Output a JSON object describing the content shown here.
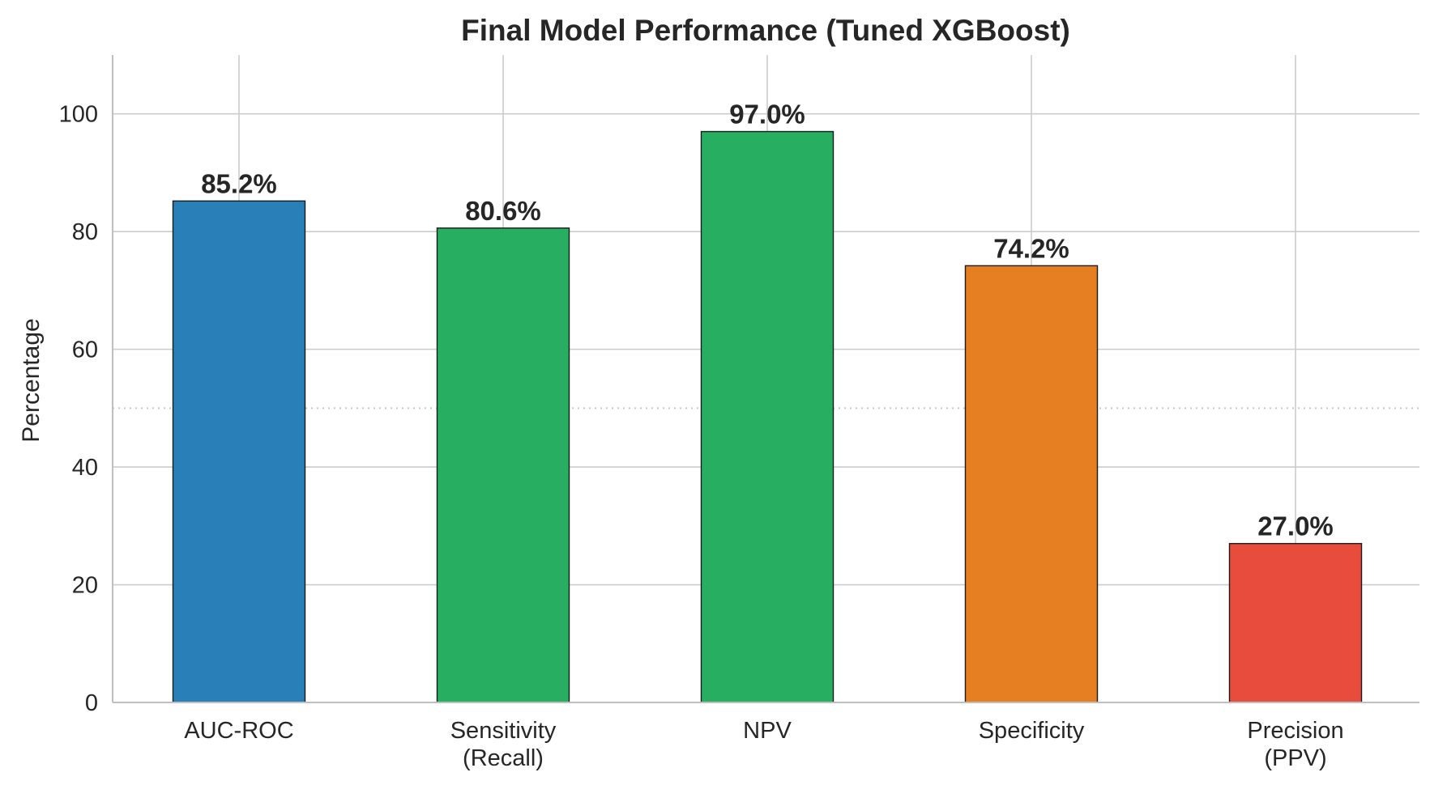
{
  "chart_data": {
    "type": "bar",
    "title": "Final Model Performance (Tuned XGBoost)",
    "xlabel": "",
    "ylabel": "Percentage",
    "ylim": [
      0,
      110
    ],
    "yticks": [
      0,
      20,
      40,
      60,
      80,
      100
    ],
    "grid": true,
    "reference_line": 50,
    "categories": [
      [
        "AUC-ROC"
      ],
      [
        "Sensitivity",
        "(Recall)"
      ],
      [
        "NPV"
      ],
      [
        "Specificity"
      ],
      [
        "Precision",
        "(PPV)"
      ]
    ],
    "values": [
      85.2,
      80.6,
      97.0,
      74.2,
      27.0
    ],
    "value_labels": [
      "85.2%",
      "80.6%",
      "97.0%",
      "74.2%",
      "27.0%"
    ],
    "colors": [
      "#2980b9",
      "#27ae60",
      "#27ae60",
      "#e67e22",
      "#e74c3c"
    ]
  }
}
